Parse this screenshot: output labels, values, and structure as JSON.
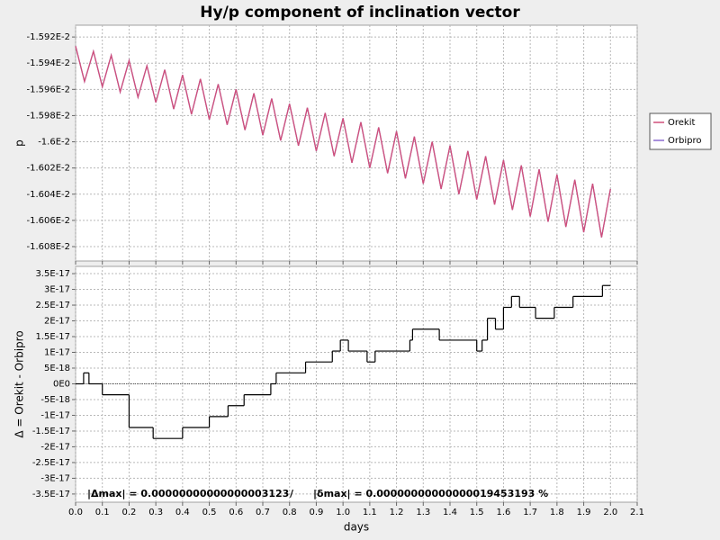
{
  "chart_data": [
    {
      "type": "line",
      "title": "Hy/p component of inclination vector",
      "ylabel": "p",
      "x": [
        0,
        0.0333,
        0.0667,
        0.1,
        0.1333,
        0.1667,
        0.2,
        0.2333,
        0.2667,
        0.3,
        0.3333,
        0.3667,
        0.4,
        0.4333,
        0.4667,
        0.5,
        0.5333,
        0.5667,
        0.6,
        0.6333,
        0.6667,
        0.7,
        0.7333,
        0.7667,
        0.8,
        0.8333,
        0.8667,
        0.9,
        0.9333,
        0.9667,
        1,
        1.0333,
        1.0667,
        1.1,
        1.1333,
        1.1667,
        1.2,
        1.2333,
        1.2667,
        1.3,
        1.3333,
        1.3667,
        1.4,
        1.4333,
        1.4667,
        1.5,
        1.5333,
        1.5667,
        1.6,
        1.6333,
        1.6667,
        1.7,
        1.7333,
        1.7667,
        1.8,
        1.8333,
        1.8667,
        1.9,
        1.9333,
        1.9667,
        2
      ],
      "series": [
        {
          "name": "Orbipro",
          "color": "#8a6ad0",
          "values": [
            -0.015927,
            -0.015954,
            -0.015931,
            -0.015958,
            -0.015934,
            -0.015962,
            -0.015938,
            -0.015966,
            -0.015942,
            -0.01597,
            -0.015945,
            -0.015975,
            -0.015949,
            -0.015979,
            -0.015952,
            -0.015983,
            -0.015956,
            -0.015987,
            -0.01596,
            -0.015991,
            -0.015963,
            -0.015995,
            -0.015967,
            -0.015999,
            -0.015971,
            -0.016003,
            -0.015974,
            -0.016007,
            -0.015978,
            -0.016011,
            -0.015982,
            -0.016016,
            -0.015985,
            -0.01602,
            -0.015989,
            -0.016024,
            -0.015992,
            -0.016028,
            -0.015996,
            -0.016032,
            -0.016,
            -0.016036,
            -0.016003,
            -0.01604,
            -0.016007,
            -0.016044,
            -0.016011,
            -0.016048,
            -0.016014,
            -0.016052,
            -0.016018,
            -0.016057,
            -0.016021,
            -0.016061,
            -0.016025,
            -0.016065,
            -0.016029,
            -0.016069,
            -0.016032,
            -0.016073,
            -0.016036
          ]
        },
        {
          "name": "Orekit",
          "color": "#d0507a",
          "values": [
            -0.015927,
            -0.015954,
            -0.015931,
            -0.015958,
            -0.015934,
            -0.015962,
            -0.015938,
            -0.015966,
            -0.015942,
            -0.01597,
            -0.015945,
            -0.015975,
            -0.015949,
            -0.015979,
            -0.015952,
            -0.015983,
            -0.015956,
            -0.015987,
            -0.01596,
            -0.015991,
            -0.015963,
            -0.015995,
            -0.015967,
            -0.015999,
            -0.015971,
            -0.016003,
            -0.015974,
            -0.016007,
            -0.015978,
            -0.016011,
            -0.015982,
            -0.016016,
            -0.015985,
            -0.01602,
            -0.015989,
            -0.016024,
            -0.015992,
            -0.016028,
            -0.015996,
            -0.016032,
            -0.016,
            -0.016036,
            -0.016003,
            -0.01604,
            -0.016007,
            -0.016044,
            -0.016011,
            -0.016048,
            -0.016014,
            -0.016052,
            -0.016018,
            -0.016057,
            -0.016021,
            -0.016061,
            -0.016025,
            -0.016065,
            -0.016029,
            -0.016069,
            -0.016032,
            -0.016073,
            -0.016036
          ]
        }
      ],
      "legend": "right",
      "grid": true,
      "xlim": [
        0,
        2.1
      ],
      "xticks": [
        0,
        0.1,
        0.2,
        0.3,
        0.4,
        0.5,
        0.6,
        0.7,
        0.8,
        0.9,
        1,
        1.1,
        1.2,
        1.3,
        1.4,
        1.5,
        1.6,
        1.7,
        1.8,
        1.9,
        2,
        2.1
      ],
      "ylim": [
        -0.016091,
        -0.015911
      ],
      "yticks": [
        {
          "value": -0.01592,
          "label": "-1.592E-2"
        },
        {
          "value": -0.01594,
          "label": "-1.594E-2"
        },
        {
          "value": -0.01596,
          "label": "-1.596E-2"
        },
        {
          "value": -0.01598,
          "label": "-1.598E-2"
        },
        {
          "value": -0.016,
          "label": "-1.6E-2"
        },
        {
          "value": -0.01602,
          "label": "-1.602E-2"
        },
        {
          "value": -0.01604,
          "label": "-1.604E-2"
        },
        {
          "value": -0.01606,
          "label": "-1.606E-2"
        },
        {
          "value": -0.01608,
          "label": "-1.608E-2"
        }
      ]
    },
    {
      "type": "step",
      "ylabel": "Δ = Orekit - Orbipro",
      "xlabel": "days",
      "color": "#000000",
      "grid": true,
      "x": [
        0,
        0.03,
        0.05,
        0.1,
        0.2,
        0.29,
        0.4,
        0.5,
        0.57,
        0.63,
        0.73,
        0.75,
        0.86,
        0.96,
        0.99,
        1.02,
        1.09,
        1.12,
        1.25,
        1.26,
        1.36,
        1.5,
        1.52,
        1.54,
        1.57,
        1.6,
        1.63,
        1.66,
        1.72,
        1.79,
        1.86,
        1.97,
        2
      ],
      "values": [
        0,
        3.47e-18,
        0,
        -3.47e-18,
        -1.388e-17,
        -1.735e-17,
        -1.388e-17,
        -1.041e-17,
        -6.94e-18,
        -3.47e-18,
        0,
        3.47e-18,
        6.94e-18,
        1.041e-17,
        1.388e-17,
        1.041e-17,
        6.94e-18,
        1.041e-17,
        1.388e-17,
        1.735e-17,
        1.388e-17,
        1.041e-17,
        1.388e-17,
        2.082e-17,
        1.735e-17,
        2.429e-17,
        2.776e-17,
        2.429e-17,
        2.082e-17,
        2.429e-17,
        2.776e-17,
        3.123e-17,
        3.123e-17
      ],
      "annotations": [
        "|Δmax| = 0.00000000000000003123",
        "/",
        "|δmax| = 0.00000000000000019453193 %"
      ],
      "xlim": [
        0,
        2.1
      ],
      "xticks": [
        {
          "value": 0,
          "label": "0.0"
        },
        0.1,
        0.2,
        0.3,
        0.4,
        0.5,
        0.6,
        0.7,
        0.8,
        0.9,
        {
          "value": 1,
          "label": "1.0"
        },
        1.1,
        1.2,
        1.3,
        1.4,
        1.5,
        1.6,
        1.7,
        1.8,
        1.9,
        {
          "value": 2,
          "label": "2.0"
        },
        2.1
      ],
      "ylim": [
        -3.76e-17,
        3.73e-17
      ],
      "yticks": [
        {
          "value": 3.5e-17,
          "label": "3.5E-17"
        },
        {
          "value": 3e-17,
          "label": "3E-17"
        },
        {
          "value": 2.5e-17,
          "label": "2.5E-17"
        },
        {
          "value": 2e-17,
          "label": "2E-17"
        },
        {
          "value": 1.5e-17,
          "label": "1.5E-17"
        },
        {
          "value": 1e-17,
          "label": "1E-17"
        },
        {
          "value": 5e-18,
          "label": "5E-18"
        },
        {
          "value": 0,
          "label": "0E0"
        },
        {
          "value": -5e-18,
          "label": "-5E-18"
        },
        {
          "value": -1e-17,
          "label": "-1E-17"
        },
        {
          "value": -1.5e-17,
          "label": "-1.5E-17"
        },
        {
          "value": -2e-17,
          "label": "-2E-17"
        },
        {
          "value": -2.5e-17,
          "label": "-2.5E-17"
        },
        {
          "value": -3e-17,
          "label": "-3E-17"
        },
        {
          "value": -3.5e-17,
          "label": "-3.5E-17"
        }
      ]
    }
  ]
}
